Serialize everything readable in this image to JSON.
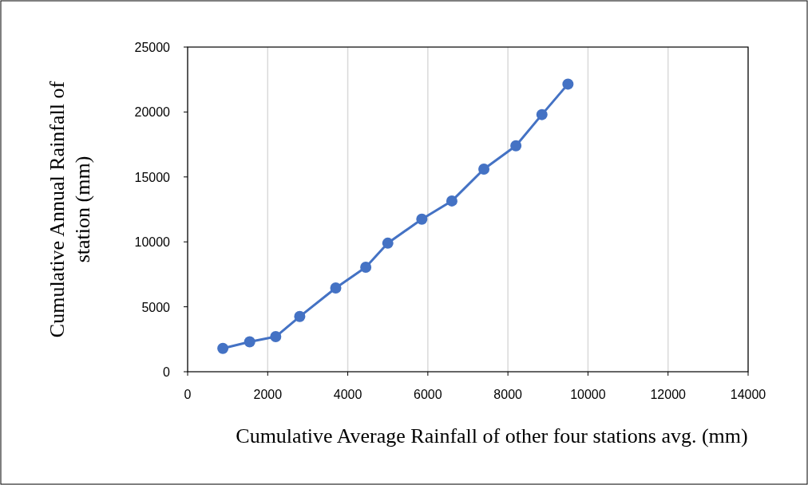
{
  "chart_data": {
    "type": "line",
    "xlabel": "Cumulative Average Rainfall of other four stations avg. (mm)",
    "ylabel": "Cumulative Annual Rainfall of station (mm)",
    "x": [
      880,
      1550,
      2200,
      2800,
      3700,
      4450,
      5000,
      5850,
      6600,
      7400,
      8200,
      8850,
      9500
    ],
    "series": [
      {
        "color": "#4472c4",
        "values": [
          1800,
          2300,
          2700,
          4250,
          6450,
          8050,
          9900,
          11750,
          13150,
          15600,
          17400,
          19800,
          22150
        ]
      }
    ],
    "xlim": [
      0,
      14000
    ],
    "xticks": [
      0,
      2000,
      4000,
      6000,
      8000,
      10000,
      12000,
      14000
    ],
    "ylim": [
      0,
      25000
    ],
    "yticks": [
      0,
      5000,
      10000,
      15000,
      20000,
      25000
    ],
    "grid": "x",
    "marker": "circle",
    "line_style": "solid"
  }
}
